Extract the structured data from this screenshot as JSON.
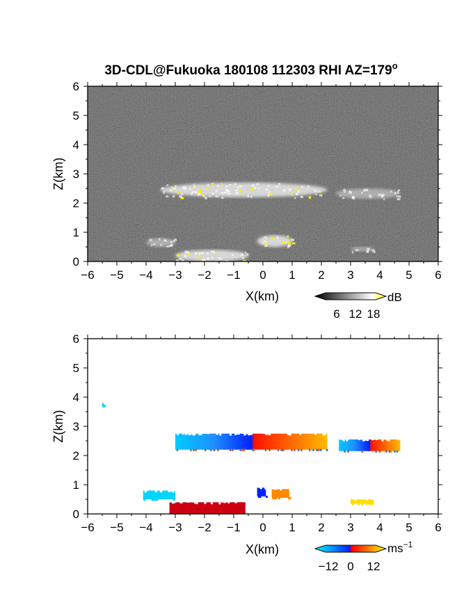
{
  "title": "3D-CDL@Fukuoka 180108 112303 RHI AZ=179",
  "title_superscript": "o",
  "chart_data": [
    {
      "type": "heatmap",
      "name": "reflectivity",
      "xlabel": "X(km)",
      "ylabel": "Z(km)",
      "xlim": [
        -6,
        6
      ],
      "ylim": [
        0,
        6
      ],
      "xticks": [
        "−6",
        "−5",
        "−4",
        "−3",
        "−2",
        "−1",
        "0",
        "1",
        "2",
        "3",
        "4",
        "5",
        "6"
      ],
      "yticks": [
        "0",
        "1",
        "2",
        "3",
        "4",
        "5",
        "6"
      ],
      "background": "noise",
      "colorbar": {
        "unit": "dB",
        "ticks": [
          "6",
          "12",
          "18"
        ],
        "colors": [
          "#000000",
          "#ffffff",
          "#ffff00"
        ]
      },
      "features": [
        {
          "label": "cloud layer",
          "x": [
            -3.5,
            2.2
          ],
          "z": [
            2.2,
            2.7
          ],
          "level": "bright"
        },
        {
          "label": "cloud layer tail",
          "x": [
            2.5,
            4.7
          ],
          "z": [
            2.15,
            2.5
          ],
          "level": "medium"
        },
        {
          "label": "low echo",
          "x": [
            -4.0,
            -3.0
          ],
          "z": [
            0.5,
            0.8
          ],
          "level": "medium"
        },
        {
          "label": "near-ground echo",
          "x": [
            -3.0,
            -0.5
          ],
          "z": [
            0.0,
            0.4
          ],
          "level": "bright"
        },
        {
          "label": "vertical echo",
          "x": [
            -0.2,
            1.0
          ],
          "z": [
            0.5,
            0.9
          ],
          "level": "bright"
        },
        {
          "label": "small echo",
          "x": [
            3.0,
            3.8
          ],
          "z": [
            0.35,
            0.5
          ],
          "level": "medium"
        }
      ]
    },
    {
      "type": "heatmap",
      "name": "doppler velocity",
      "xlabel": "X(km)",
      "ylabel": "Z(km)",
      "xlim": [
        -6,
        6
      ],
      "ylim": [
        0,
        6
      ],
      "xticks": [
        "−6",
        "−5",
        "−4",
        "−3",
        "−2",
        "−1",
        "0",
        "1",
        "2",
        "3",
        "4",
        "5",
        "6"
      ],
      "yticks": [
        "0",
        "1",
        "2",
        "3",
        "4",
        "5",
        "6"
      ],
      "background": "#ffffff",
      "colorbar": {
        "unit": "ms",
        "unit_superscript": "−1",
        "ticks": [
          "−12",
          "0",
          "12"
        ],
        "colors": [
          "#00ffff",
          "#0033ff",
          "#ff0000",
          "#ffff00"
        ]
      },
      "features": [
        {
          "label": "cloud layer",
          "x": [
            -3.0,
            2.2
          ],
          "z": [
            2.2,
            2.75
          ],
          "velocity": [
            -10,
            10
          ]
        },
        {
          "label": "cloud layer tail",
          "x": [
            2.6,
            4.7
          ],
          "z": [
            2.15,
            2.55
          ],
          "velocity": [
            12,
            14
          ]
        },
        {
          "label": "isolated point",
          "x": [
            -5.5,
            -5.4
          ],
          "z": [
            3.7,
            3.8
          ],
          "velocity": -10
        },
        {
          "label": "low echo",
          "x": [
            -4.1,
            -3.0
          ],
          "z": [
            0.5,
            0.8
          ],
          "velocity": -11
        },
        {
          "label": "near-ground echo",
          "x": [
            -3.2,
            -0.6
          ],
          "z": [
            0.0,
            0.4
          ],
          "velocity": 0
        },
        {
          "label": "vertical echo left",
          "x": [
            -0.2,
            0.1
          ],
          "z": [
            0.6,
            0.9
          ],
          "velocity": -4
        },
        {
          "label": "vertical echo right",
          "x": [
            0.3,
            0.9
          ],
          "z": [
            0.55,
            0.85
          ],
          "velocity": 9
        },
        {
          "label": "small echo",
          "x": [
            3.0,
            3.8
          ],
          "z": [
            0.35,
            0.5
          ],
          "velocity": 12
        }
      ]
    }
  ]
}
